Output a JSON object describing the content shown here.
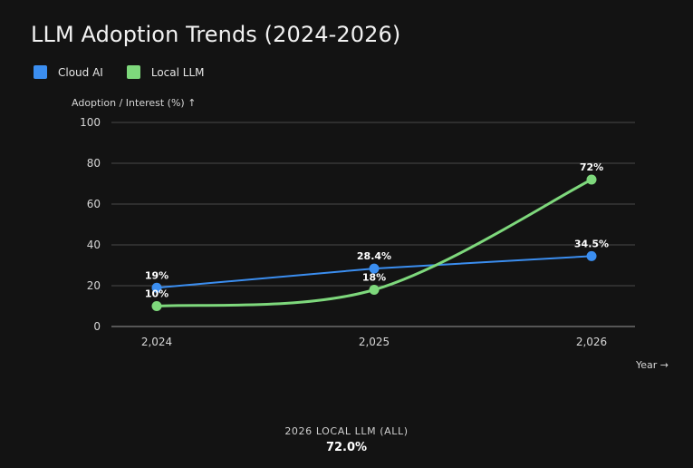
{
  "title": "LLM Adoption Trends (2024-2026)",
  "legend": [
    {
      "label": "Cloud AI",
      "color": "#3b8ef0"
    },
    {
      "label": "Local LLM",
      "color": "#7ed87c"
    }
  ],
  "footer": {
    "label": "2026 LOCAL LLM (ALL)",
    "value": "72.0%"
  },
  "chart_data": {
    "type": "line",
    "title": "LLM Adoption Trends (2024-2026)",
    "xlabel": "Year →",
    "ylabel": "Adoption / Interest (%) ↑",
    "x": [
      2024,
      2025,
      2026
    ],
    "x_tick_labels": [
      "2,024",
      "2,025",
      "2,026"
    ],
    "ylim": [
      0,
      100
    ],
    "y_ticks": [
      0,
      20,
      40,
      60,
      80,
      100
    ],
    "grid": true,
    "legend_position": "top-left",
    "series": [
      {
        "name": "Cloud AI",
        "color": "#3b8ef0",
        "curve": "linear",
        "values": [
          19,
          28.4,
          34.5
        ],
        "labels": [
          "19%",
          "28.4%",
          "34.5%"
        ]
      },
      {
        "name": "Local LLM",
        "color": "#7ed87c",
        "curve": "smooth",
        "values": [
          10,
          18,
          72
        ],
        "labels": [
          "10%",
          "18%",
          "72%"
        ]
      }
    ]
  }
}
